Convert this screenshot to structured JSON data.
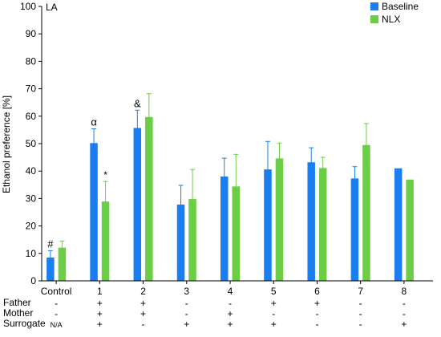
{
  "chart_data": {
    "type": "bar",
    "panel_label": "LA",
    "ylabel": "Ethanol preference [%]",
    "ylim": [
      0,
      100
    ],
    "yticks": [
      0,
      10,
      20,
      30,
      40,
      50,
      60,
      70,
      80,
      90,
      100
    ],
    "grid": false,
    "legend_position": "top-right",
    "categories": [
      "Control",
      "1",
      "2",
      "3",
      "4",
      "5",
      "6",
      "7",
      "8"
    ],
    "series": [
      {
        "name": "Baseline",
        "color": "#1a7ef0",
        "values": [
          8.5,
          50.2,
          55.7,
          27.8,
          38.0,
          40.6,
          43.2,
          37.3,
          41.0
        ],
        "errors": [
          2.5,
          5.2,
          6.5,
          7.0,
          6.7,
          10.2,
          5.3,
          4.3,
          null
        ]
      },
      {
        "name": "NLX",
        "color": "#6bce45",
        "values": [
          12.1,
          28.9,
          59.7,
          29.8,
          34.4,
          44.6,
          41.1,
          49.5,
          36.9
        ],
        "errors": [
          2.4,
          7.3,
          8.5,
          10.8,
          11.7,
          5.6,
          3.9,
          7.8,
          null
        ]
      }
    ],
    "annotations": [
      {
        "text": "#",
        "category": "Control",
        "series": "Baseline"
      },
      {
        "text": "α",
        "category": "1",
        "series": "Baseline"
      },
      {
        "text": "*",
        "category": "1",
        "series": "NLX"
      },
      {
        "text": "&",
        "category": "2",
        "series": "Baseline"
      }
    ],
    "condition_table": {
      "rows": [
        {
          "label": "Father",
          "values": [
            "-",
            "+",
            "+",
            "-",
            "-",
            "+",
            "+",
            "-",
            "-"
          ]
        },
        {
          "label": "Mother",
          "values": [
            "-",
            "+",
            "+",
            "-",
            "+",
            "-",
            "-",
            "-",
            "-"
          ]
        },
        {
          "label": "Surrogate",
          "values": [
            "N/A",
            "+",
            "-",
            "+",
            "+",
            "+",
            "-",
            "-",
            "+"
          ]
        }
      ]
    }
  }
}
